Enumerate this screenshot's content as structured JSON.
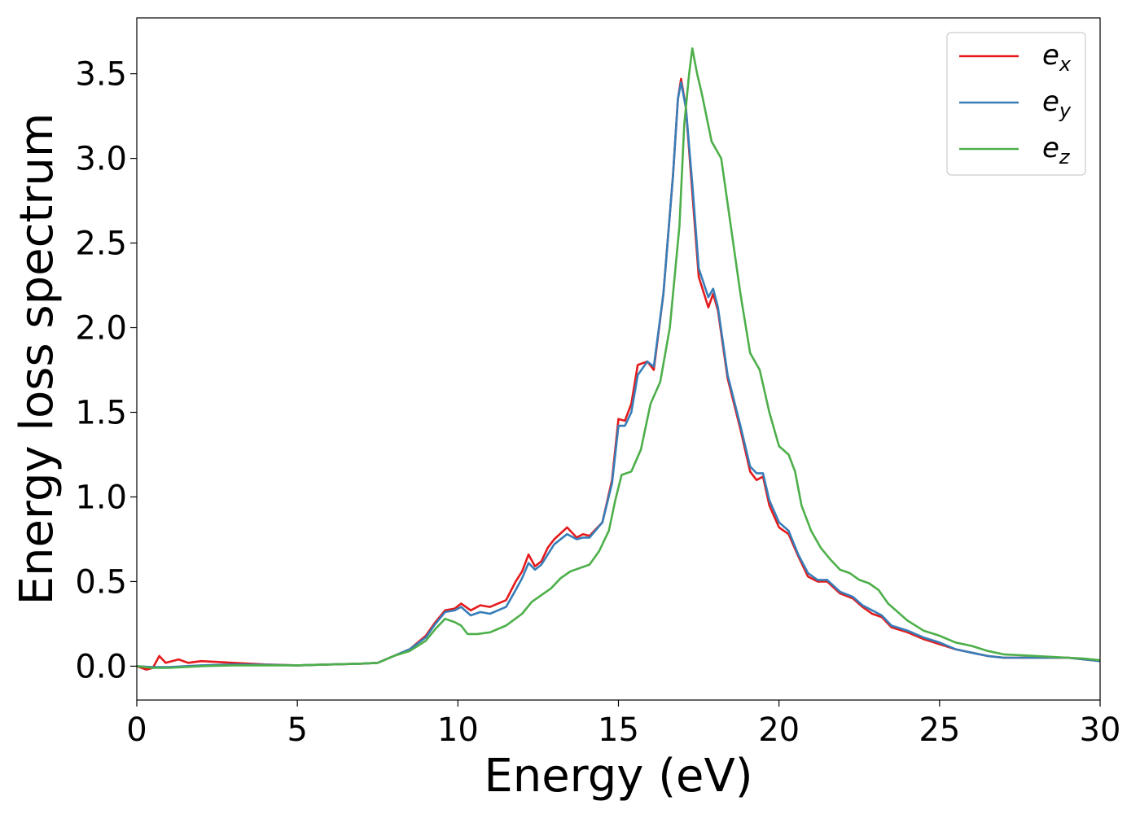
{
  "chart_data": {
    "type": "line",
    "xlabel": "Energy (eV)",
    "ylabel": "Energy loss spectrum",
    "xlim": [
      0,
      30
    ],
    "ylim": [
      -0.2,
      3.83
    ],
    "xticks": [
      0,
      5,
      10,
      15,
      20,
      25,
      30
    ],
    "xtick_labels": [
      "0",
      "5",
      "10",
      "15",
      "20",
      "25",
      "30"
    ],
    "yticks": [
      0.0,
      0.5,
      1.0,
      1.5,
      2.0,
      2.5,
      3.0,
      3.5
    ],
    "ytick_labels": [
      "0.0",
      "0.5",
      "1.0",
      "1.5",
      "2.0",
      "2.5",
      "3.0",
      "3.5"
    ],
    "grid": false,
    "legend": {
      "position": "top-right"
    },
    "series": [
      {
        "name": "e_x",
        "label_base": "e",
        "label_sub": "x",
        "color": "#e41a1c",
        "points": [
          [
            0,
            0.0
          ],
          [
            0.3,
            -0.02
          ],
          [
            0.5,
            -0.01
          ],
          [
            0.7,
            0.06
          ],
          [
            0.9,
            0.02
          ],
          [
            1.3,
            0.04
          ],
          [
            1.6,
            0.02
          ],
          [
            2.0,
            0.03
          ],
          [
            2.5,
            0.025
          ],
          [
            3,
            0.02
          ],
          [
            4,
            0.01
          ],
          [
            5,
            0.005
          ],
          [
            6,
            0.01
          ],
          [
            7,
            0.015
          ],
          [
            7.5,
            0.02
          ],
          [
            8,
            0.06
          ],
          [
            8.5,
            0.1
          ],
          [
            9,
            0.18
          ],
          [
            9.3,
            0.26
          ],
          [
            9.6,
            0.33
          ],
          [
            9.9,
            0.34
          ],
          [
            10.1,
            0.37
          ],
          [
            10.4,
            0.33
          ],
          [
            10.7,
            0.36
          ],
          [
            11,
            0.35
          ],
          [
            11.5,
            0.39
          ],
          [
            11.8,
            0.5
          ],
          [
            12,
            0.56
          ],
          [
            12.2,
            0.66
          ],
          [
            12.4,
            0.59
          ],
          [
            12.6,
            0.62
          ],
          [
            12.8,
            0.7
          ],
          [
            13,
            0.75
          ],
          [
            13.4,
            0.82
          ],
          [
            13.7,
            0.76
          ],
          [
            13.9,
            0.78
          ],
          [
            14.1,
            0.77
          ],
          [
            14.5,
            0.85
          ],
          [
            14.8,
            1.1
          ],
          [
            15,
            1.46
          ],
          [
            15.2,
            1.45
          ],
          [
            15.4,
            1.55
          ],
          [
            15.6,
            1.78
          ],
          [
            15.9,
            1.8
          ],
          [
            16.1,
            1.75
          ],
          [
            16.4,
            2.2
          ],
          [
            16.7,
            2.9
          ],
          [
            16.85,
            3.35
          ],
          [
            16.95,
            3.47
          ],
          [
            17.1,
            3.3
          ],
          [
            17.3,
            2.8
          ],
          [
            17.5,
            2.3
          ],
          [
            17.8,
            2.12
          ],
          [
            17.95,
            2.2
          ],
          [
            18.1,
            2.1
          ],
          [
            18.4,
            1.7
          ],
          [
            18.8,
            1.4
          ],
          [
            19.1,
            1.15
          ],
          [
            19.3,
            1.1
          ],
          [
            19.5,
            1.12
          ],
          [
            19.7,
            0.95
          ],
          [
            20,
            0.82
          ],
          [
            20.3,
            0.78
          ],
          [
            20.6,
            0.65
          ],
          [
            20.9,
            0.53
          ],
          [
            21.2,
            0.5
          ],
          [
            21.5,
            0.5
          ],
          [
            21.9,
            0.43
          ],
          [
            22.3,
            0.4
          ],
          [
            22.6,
            0.35
          ],
          [
            22.9,
            0.31
          ],
          [
            23.2,
            0.29
          ],
          [
            23.5,
            0.23
          ],
          [
            24,
            0.2
          ],
          [
            24.5,
            0.16
          ],
          [
            25,
            0.13
          ],
          [
            25.5,
            0.1
          ],
          [
            26,
            0.08
          ],
          [
            26.5,
            0.06
          ],
          [
            27,
            0.05
          ],
          [
            28,
            0.05
          ],
          [
            29,
            0.05
          ],
          [
            29.5,
            0.04
          ],
          [
            30,
            0.03
          ]
        ]
      },
      {
        "name": "e_y",
        "label_base": "e",
        "label_sub": "y",
        "color": "#377eb8",
        "points": [
          [
            0,
            0.0
          ],
          [
            0.5,
            -0.005
          ],
          [
            1,
            -0.005
          ],
          [
            2,
            0.005
          ],
          [
            3,
            0.01
          ],
          [
            4,
            0.008
          ],
          [
            5,
            0.005
          ],
          [
            6,
            0.01
          ],
          [
            7,
            0.015
          ],
          [
            7.5,
            0.02
          ],
          [
            8,
            0.06
          ],
          [
            8.5,
            0.1
          ],
          [
            9,
            0.17
          ],
          [
            9.3,
            0.25
          ],
          [
            9.6,
            0.32
          ],
          [
            9.9,
            0.33
          ],
          [
            10.1,
            0.35
          ],
          [
            10.4,
            0.3
          ],
          [
            10.7,
            0.32
          ],
          [
            11,
            0.31
          ],
          [
            11.5,
            0.35
          ],
          [
            11.8,
            0.45
          ],
          [
            12,
            0.52
          ],
          [
            12.2,
            0.61
          ],
          [
            12.4,
            0.57
          ],
          [
            12.6,
            0.6
          ],
          [
            12.8,
            0.66
          ],
          [
            13,
            0.72
          ],
          [
            13.4,
            0.78
          ],
          [
            13.7,
            0.75
          ],
          [
            13.9,
            0.76
          ],
          [
            14.1,
            0.76
          ],
          [
            14.5,
            0.85
          ],
          [
            14.8,
            1.08
          ],
          [
            15,
            1.42
          ],
          [
            15.2,
            1.42
          ],
          [
            15.4,
            1.5
          ],
          [
            15.6,
            1.72
          ],
          [
            15.9,
            1.8
          ],
          [
            16.1,
            1.77
          ],
          [
            16.4,
            2.2
          ],
          [
            16.7,
            2.9
          ],
          [
            16.85,
            3.35
          ],
          [
            16.95,
            3.45
          ],
          [
            17.1,
            3.3
          ],
          [
            17.3,
            2.85
          ],
          [
            17.5,
            2.35
          ],
          [
            17.8,
            2.18
          ],
          [
            17.95,
            2.23
          ],
          [
            18.1,
            2.12
          ],
          [
            18.4,
            1.72
          ],
          [
            18.8,
            1.42
          ],
          [
            19.1,
            1.18
          ],
          [
            19.3,
            1.14
          ],
          [
            19.5,
            1.14
          ],
          [
            19.7,
            0.98
          ],
          [
            20,
            0.85
          ],
          [
            20.3,
            0.8
          ],
          [
            20.6,
            0.66
          ],
          [
            20.9,
            0.55
          ],
          [
            21.2,
            0.51
          ],
          [
            21.5,
            0.51
          ],
          [
            21.9,
            0.44
          ],
          [
            22.3,
            0.41
          ],
          [
            22.6,
            0.36
          ],
          [
            22.9,
            0.33
          ],
          [
            23.2,
            0.3
          ],
          [
            23.5,
            0.24
          ],
          [
            24,
            0.21
          ],
          [
            24.5,
            0.17
          ],
          [
            25,
            0.14
          ],
          [
            25.5,
            0.1
          ],
          [
            26,
            0.08
          ],
          [
            26.5,
            0.06
          ],
          [
            27,
            0.05
          ],
          [
            28,
            0.05
          ],
          [
            29,
            0.05
          ],
          [
            29.5,
            0.04
          ],
          [
            30,
            0.03
          ]
        ]
      },
      {
        "name": "e_z",
        "label_base": "e",
        "label_sub": "z",
        "color": "#4daf4a",
        "points": [
          [
            0,
            0.0
          ],
          [
            0.5,
            -0.01
          ],
          [
            1,
            -0.01
          ],
          [
            2,
            0.0
          ],
          [
            3,
            0.005
          ],
          [
            4,
            0.005
          ],
          [
            5,
            0.005
          ],
          [
            6,
            0.01
          ],
          [
            7,
            0.015
          ],
          [
            7.5,
            0.02
          ],
          [
            8,
            0.06
          ],
          [
            8.5,
            0.09
          ],
          [
            9,
            0.15
          ],
          [
            9.3,
            0.22
          ],
          [
            9.6,
            0.28
          ],
          [
            9.9,
            0.26
          ],
          [
            10.1,
            0.24
          ],
          [
            10.3,
            0.19
          ],
          [
            10.6,
            0.19
          ],
          [
            11,
            0.2
          ],
          [
            11.5,
            0.24
          ],
          [
            12,
            0.31
          ],
          [
            12.3,
            0.38
          ],
          [
            12.6,
            0.42
          ],
          [
            12.9,
            0.46
          ],
          [
            13.2,
            0.52
          ],
          [
            13.5,
            0.56
          ],
          [
            13.8,
            0.58
          ],
          [
            14.1,
            0.6
          ],
          [
            14.4,
            0.68
          ],
          [
            14.7,
            0.8
          ],
          [
            14.9,
            0.98
          ],
          [
            15.1,
            1.13
          ],
          [
            15.4,
            1.15
          ],
          [
            15.7,
            1.28
          ],
          [
            16,
            1.55
          ],
          [
            16.3,
            1.68
          ],
          [
            16.6,
            2.0
          ],
          [
            16.9,
            2.6
          ],
          [
            17.05,
            3.2
          ],
          [
            17.2,
            3.5
          ],
          [
            17.3,
            3.65
          ],
          [
            17.45,
            3.5
          ],
          [
            17.6,
            3.38
          ],
          [
            17.9,
            3.1
          ],
          [
            18.2,
            3.0
          ],
          [
            18.5,
            2.6
          ],
          [
            18.8,
            2.2
          ],
          [
            19.1,
            1.85
          ],
          [
            19.4,
            1.75
          ],
          [
            19.7,
            1.5
          ],
          [
            20,
            1.3
          ],
          [
            20.3,
            1.25
          ],
          [
            20.5,
            1.15
          ],
          [
            20.7,
            0.95
          ],
          [
            21,
            0.8
          ],
          [
            21.3,
            0.7
          ],
          [
            21.6,
            0.63
          ],
          [
            21.9,
            0.57
          ],
          [
            22.2,
            0.55
          ],
          [
            22.5,
            0.51
          ],
          [
            22.8,
            0.49
          ],
          [
            23.1,
            0.45
          ],
          [
            23.4,
            0.37
          ],
          [
            24,
            0.27
          ],
          [
            24.5,
            0.21
          ],
          [
            25,
            0.18
          ],
          [
            25.5,
            0.14
          ],
          [
            26,
            0.12
          ],
          [
            26.5,
            0.09
          ],
          [
            27,
            0.07
          ],
          [
            28,
            0.06
          ],
          [
            29,
            0.05
          ],
          [
            29.5,
            0.045
          ],
          [
            30,
            0.035
          ]
        ]
      }
    ]
  }
}
